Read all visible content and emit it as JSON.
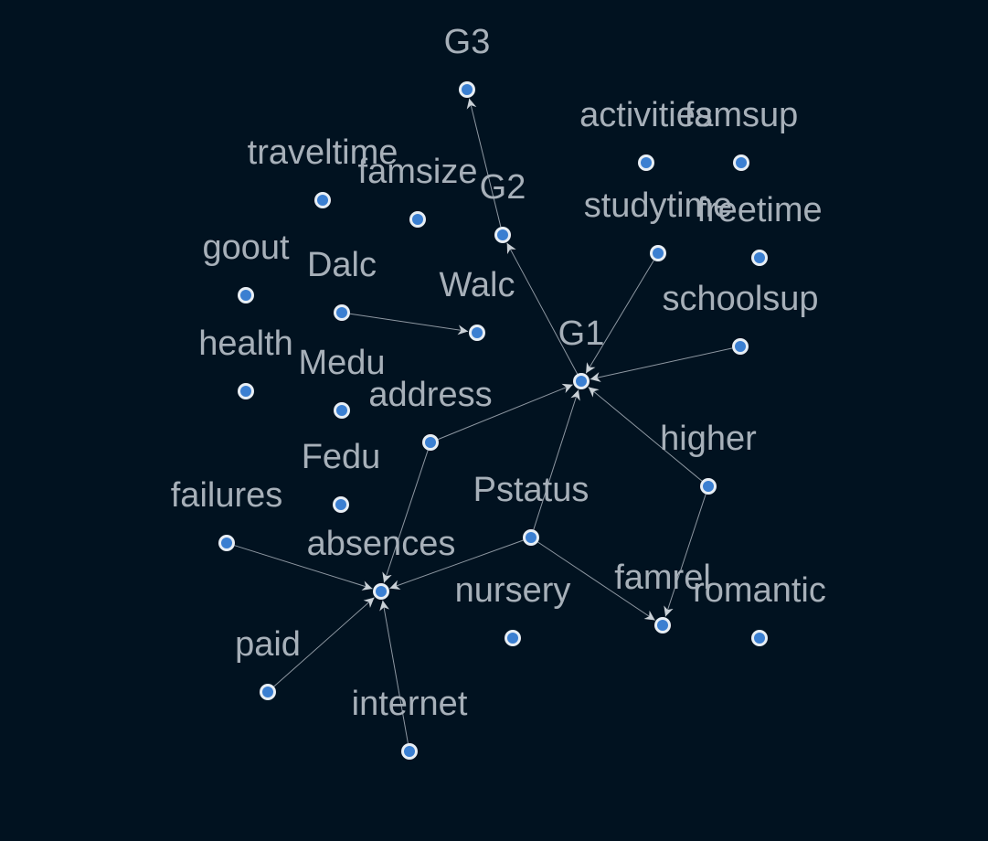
{
  "graph": {
    "colors": {
      "background": "#011220",
      "node_fill": "#3b7fd1",
      "node_ring": "#e8eef4",
      "edge": "#8e98a2",
      "label": "#a7b0b9"
    },
    "nodes": [
      {
        "id": "G3",
        "label": "G3"
      },
      {
        "id": "activities",
        "label": "activities"
      },
      {
        "id": "famsup",
        "label": "famsup"
      },
      {
        "id": "traveltime",
        "label": "traveltime"
      },
      {
        "id": "famsize",
        "label": "famsize"
      },
      {
        "id": "G2",
        "label": "G2"
      },
      {
        "id": "studytime",
        "label": "studytime"
      },
      {
        "id": "freetime",
        "label": "freetime"
      },
      {
        "id": "goout",
        "label": "goout"
      },
      {
        "id": "Dalc",
        "label": "Dalc"
      },
      {
        "id": "Walc",
        "label": "Walc"
      },
      {
        "id": "schoolsup",
        "label": "schoolsup"
      },
      {
        "id": "G1",
        "label": "G1"
      },
      {
        "id": "health",
        "label": "health"
      },
      {
        "id": "Medu",
        "label": "Medu"
      },
      {
        "id": "address",
        "label": "address"
      },
      {
        "id": "higher",
        "label": "higher"
      },
      {
        "id": "Fedu",
        "label": "Fedu"
      },
      {
        "id": "failures",
        "label": "failures"
      },
      {
        "id": "Pstatus",
        "label": "Pstatus"
      },
      {
        "id": "absences",
        "label": "absences"
      },
      {
        "id": "nursery",
        "label": "nursery"
      },
      {
        "id": "famrel",
        "label": "famrel"
      },
      {
        "id": "romantic",
        "label": "romantic"
      },
      {
        "id": "paid",
        "label": "paid"
      },
      {
        "id": "internet",
        "label": "internet"
      }
    ],
    "edges": [
      {
        "from": "G2",
        "to": "G3"
      },
      {
        "from": "G1",
        "to": "G2"
      },
      {
        "from": "studytime",
        "to": "G1"
      },
      {
        "from": "schoolsup",
        "to": "G1"
      },
      {
        "from": "address",
        "to": "G1"
      },
      {
        "from": "Pstatus",
        "to": "G1"
      },
      {
        "from": "higher",
        "to": "G1"
      },
      {
        "from": "Dalc",
        "to": "Walc"
      },
      {
        "from": "address",
        "to": "absences"
      },
      {
        "from": "failures",
        "to": "absences"
      },
      {
        "from": "Pstatus",
        "to": "absences"
      },
      {
        "from": "paid",
        "to": "absences"
      },
      {
        "from": "internet",
        "to": "absences"
      },
      {
        "from": "Pstatus",
        "to": "famrel"
      },
      {
        "from": "higher",
        "to": "famrel"
      }
    ]
  }
}
